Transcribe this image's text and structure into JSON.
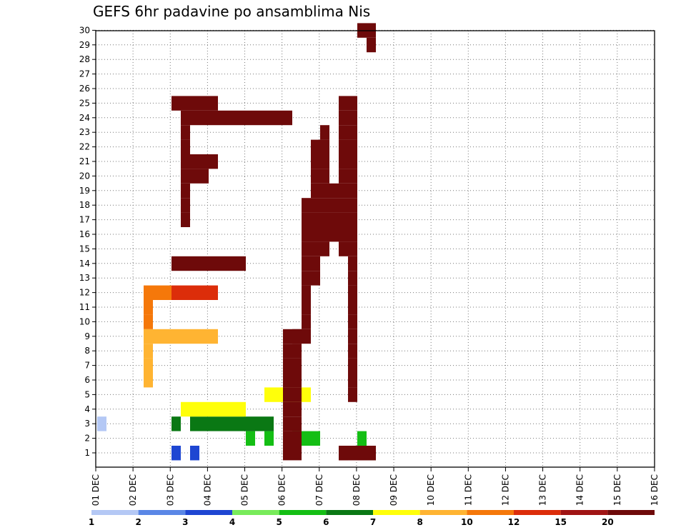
{
  "chart_data": {
    "type": "heatmap",
    "title": "GEFS 6hr padavine po ansamblima Nis",
    "xlabel": "",
    "ylabel": "",
    "x_tick_labels": [
      "01 DEC",
      "02 DEC",
      "03 DEC",
      "04 DEC",
      "05 DEC",
      "06 DEC",
      "07 DEC",
      "08 DEC",
      "09 DEC",
      "10 DEC",
      "11 DEC",
      "12 DEC",
      "13 DEC",
      "14 DEC",
      "15 DEC",
      "16 DEC"
    ],
    "y_tick_labels": [
      "1",
      "2",
      "3",
      "4",
      "5",
      "6",
      "7",
      "8",
      "9",
      "10",
      "11",
      "12",
      "13",
      "14",
      "15",
      "16",
      "17",
      "18",
      "19",
      "20",
      "21",
      "22",
      "23",
      "24",
      "25",
      "26",
      "27",
      "28",
      "29",
      "30"
    ],
    "grid": true,
    "colorbar": {
      "colors": [
        "#b4c8f5",
        "#5a87e6",
        "#1e46d2",
        "#78eb5a",
        "#14be14",
        "#0a7814",
        "#ffff0a",
        "#ffb432",
        "#f5780a",
        "#dc2d0a",
        "#a01414",
        "#6e0a0a"
      ],
      "labels": [
        "1",
        "2",
        "3",
        "4",
        "5",
        "6",
        "7",
        "8",
        "10",
        "12",
        "15",
        "20"
      ]
    },
    "cells": [
      [
        2,
        0,
        1
      ],
      [
        0,
        8,
        2
      ],
      [
        0,
        10,
        2
      ],
      [
        0,
        8,
        3
      ],
      [
        0,
        10,
        3
      ],
      [
        0,
        29,
        2
      ],
      [
        0,
        29,
        3
      ],
      [
        0,
        29,
        5
      ],
      [
        0,
        28,
        12
      ],
      [
        0,
        28,
        13
      ],
      [
        0,
        28,
        14
      ],
      [
        0,
        27,
        14
      ],
      [
        0,
        28,
        15
      ],
      [
        0,
        26,
        15
      ],
      [
        0,
        26,
        16
      ],
      [
        0,
        26,
        17
      ],
      [
        0,
        27,
        17
      ],
      [
        0,
        28,
        17
      ],
      [
        0,
        29,
        17
      ],
      [
        0,
        29,
        18
      ],
      [
        1,
        16,
        5
      ],
      [
        1,
        18,
        5
      ],
      [
        1,
        21,
        5
      ],
      [
        1,
        22,
        5
      ],
      [
        1,
        23,
        5
      ],
      [
        1,
        28,
        5
      ],
      [
        2,
        8,
        6
      ],
      [
        2,
        10,
        6
      ],
      [
        2,
        11,
        6
      ],
      [
        2,
        12,
        6
      ],
      [
        2,
        13,
        6
      ],
      [
        2,
        14,
        6
      ],
      [
        2,
        15,
        6
      ],
      [
        2,
        16,
        6
      ],
      [
        2,
        17,
        6
      ],
      [
        2,
        18,
        6
      ],
      [
        3,
        9,
        7
      ],
      [
        3,
        10,
        7
      ],
      [
        3,
        11,
        7
      ],
      [
        3,
        12,
        7
      ],
      [
        3,
        13,
        7
      ],
      [
        3,
        14,
        7
      ],
      [
        3,
        15,
        7
      ],
      [
        4,
        18,
        7
      ],
      [
        4,
        19,
        7
      ],
      [
        4,
        20,
        7
      ],
      [
        4,
        21,
        7
      ],
      [
        4,
        22,
        7
      ],
      [
        5,
        5,
        8
      ],
      [
        6,
        5,
        8
      ],
      [
        7,
        5,
        8
      ],
      [
        8,
        5,
        8
      ],
      [
        8,
        6,
        8
      ],
      [
        8,
        7,
        8
      ],
      [
        8,
        8,
        8
      ],
      [
        8,
        9,
        8
      ],
      [
        8,
        10,
        8
      ],
      [
        8,
        11,
        8
      ],
      [
        8,
        12,
        8
      ],
      [
        9,
        5,
        9
      ],
      [
        10,
        5,
        9
      ],
      [
        11,
        5,
        9
      ],
      [
        11,
        6,
        9
      ],
      [
        11,
        7,
        9
      ],
      [
        11,
        8,
        10
      ],
      [
        11,
        9,
        10
      ],
      [
        11,
        10,
        10
      ],
      [
        11,
        11,
        10
      ],
      [
        11,
        12,
        10
      ],
      [
        16,
        9,
        12
      ],
      [
        17,
        9,
        12
      ],
      [
        18,
        9,
        12
      ],
      [
        19,
        9,
        12
      ],
      [
        19,
        10,
        12
      ],
      [
        19,
        11,
        12
      ],
      [
        20,
        9,
        13
      ],
      [
        20,
        10,
        13
      ],
      [
        20,
        11,
        13
      ],
      [
        20,
        12,
        13
      ],
      [
        21,
        9,
        15
      ],
      [
        22,
        9,
        15
      ],
      [
        23,
        9,
        15
      ],
      [
        23,
        10,
        15
      ],
      [
        23,
        11,
        15
      ],
      [
        23,
        12,
        15
      ],
      [
        23,
        13,
        15
      ],
      [
        23,
        14,
        15
      ],
      [
        23,
        15,
        15
      ],
      [
        23,
        16,
        16
      ],
      [
        23,
        17,
        16
      ],
      [
        23,
        18,
        16
      ],
      [
        23,
        19,
        16
      ],
      [
        23,
        20,
        16
      ],
      [
        24,
        8,
        17
      ],
      [
        24,
        9,
        17
      ],
      [
        24,
        10,
        17
      ],
      [
        24,
        11,
        17
      ],
      [
        24,
        12,
        17
      ],
      [
        13,
        8,
        18
      ],
      [
        13,
        9,
        18
      ],
      [
        13,
        10,
        18
      ],
      [
        13,
        11,
        18
      ],
      [
        13,
        12,
        18
      ],
      [
        13,
        13,
        18
      ],
      [
        13,
        14,
        18
      ],
      [
        13,
        15,
        18
      ],
      [
        0,
        20,
        19
      ],
      [
        1,
        20,
        19
      ],
      [
        2,
        20,
        19
      ],
      [
        3,
        20,
        19
      ],
      [
        4,
        20,
        19
      ],
      [
        5,
        20,
        19
      ],
      [
        6,
        20,
        19
      ],
      [
        7,
        20,
        19
      ],
      [
        8,
        20,
        19
      ],
      [
        8,
        21,
        19
      ],
      [
        0,
        21,
        20
      ],
      [
        1,
        21,
        20
      ],
      [
        2,
        21,
        20
      ],
      [
        3,
        21,
        20
      ],
      [
        4,
        21,
        20
      ],
      [
        5,
        21,
        20
      ],
      [
        6,
        21,
        20
      ],
      [
        7,
        21,
        20
      ],
      [
        8,
        21,
        20
      ],
      [
        8,
        22,
        20
      ],
      [
        9,
        22,
        21
      ],
      [
        10,
        22,
        21
      ],
      [
        11,
        22,
        21
      ],
      [
        12,
        22,
        21
      ],
      [
        13,
        22,
        21
      ],
      [
        14,
        22,
        21
      ],
      [
        15,
        22,
        21
      ],
      [
        16,
        22,
        21
      ],
      [
        17,
        22,
        21
      ],
      [
        12,
        23,
        22
      ],
      [
        13,
        23,
        22
      ],
      [
        14,
        23,
        22
      ],
      [
        15,
        23,
        22
      ],
      [
        16,
        23,
        22
      ],
      [
        17,
        23,
        22
      ],
      [
        18,
        23,
        22
      ],
      [
        19,
        23,
        22
      ],
      [
        20,
        23,
        22
      ],
      [
        21,
        23,
        22
      ],
      [
        14,
        24,
        23
      ],
      [
        15,
        24,
        23
      ],
      [
        16,
        24,
        23
      ],
      [
        17,
        24,
        23
      ],
      [
        18,
        24,
        23
      ],
      [
        19,
        24,
        23
      ],
      [
        20,
        24,
        23
      ],
      [
        21,
        24,
        23
      ],
      [
        22,
        24,
        23
      ],
      [
        15,
        25,
        24
      ],
      [
        16,
        25,
        24
      ],
      [
        17,
        25,
        24
      ],
      [
        18,
        25,
        24
      ],
      [
        14,
        26,
        25
      ],
      [
        15,
        26,
        25
      ],
      [
        16,
        26,
        25
      ],
      [
        17,
        26,
        25
      ],
      [
        18,
        26,
        25
      ],
      [
        19,
        26,
        25
      ],
      [
        20,
        26,
        25
      ],
      [
        21,
        26,
        25
      ],
      [
        22,
        26,
        25
      ],
      [
        23,
        26,
        25
      ],
      [
        24,
        26,
        25
      ],
      [
        4,
        27,
        26
      ],
      [
        5,
        27,
        26
      ],
      [
        6,
        27,
        26
      ],
      [
        7,
        27,
        26
      ],
      [
        8,
        27,
        26
      ],
      [
        9,
        27,
        26
      ],
      [
        10,
        27,
        26
      ],
      [
        11,
        27,
        26
      ],
      [
        12,
        27,
        26
      ],
      [
        13,
        27,
        26
      ],
      [
        14,
        27,
        26
      ],
      [
        15,
        27,
        26
      ],
      [
        16,
        27,
        26
      ],
      [
        17,
        27,
        26
      ],
      [
        18,
        27,
        26
      ],
      [
        19,
        27,
        26
      ],
      [
        20,
        27,
        26
      ],
      [
        21,
        27,
        26
      ],
      [
        22,
        27,
        26
      ],
      [
        23,
        27,
        26
      ],
      [
        24,
        27,
        26
      ],
      [
        28,
        29,
        29
      ],
      [
        29,
        29,
        29
      ],
      [
        29,
        28,
        28
      ]
    ]
  }
}
